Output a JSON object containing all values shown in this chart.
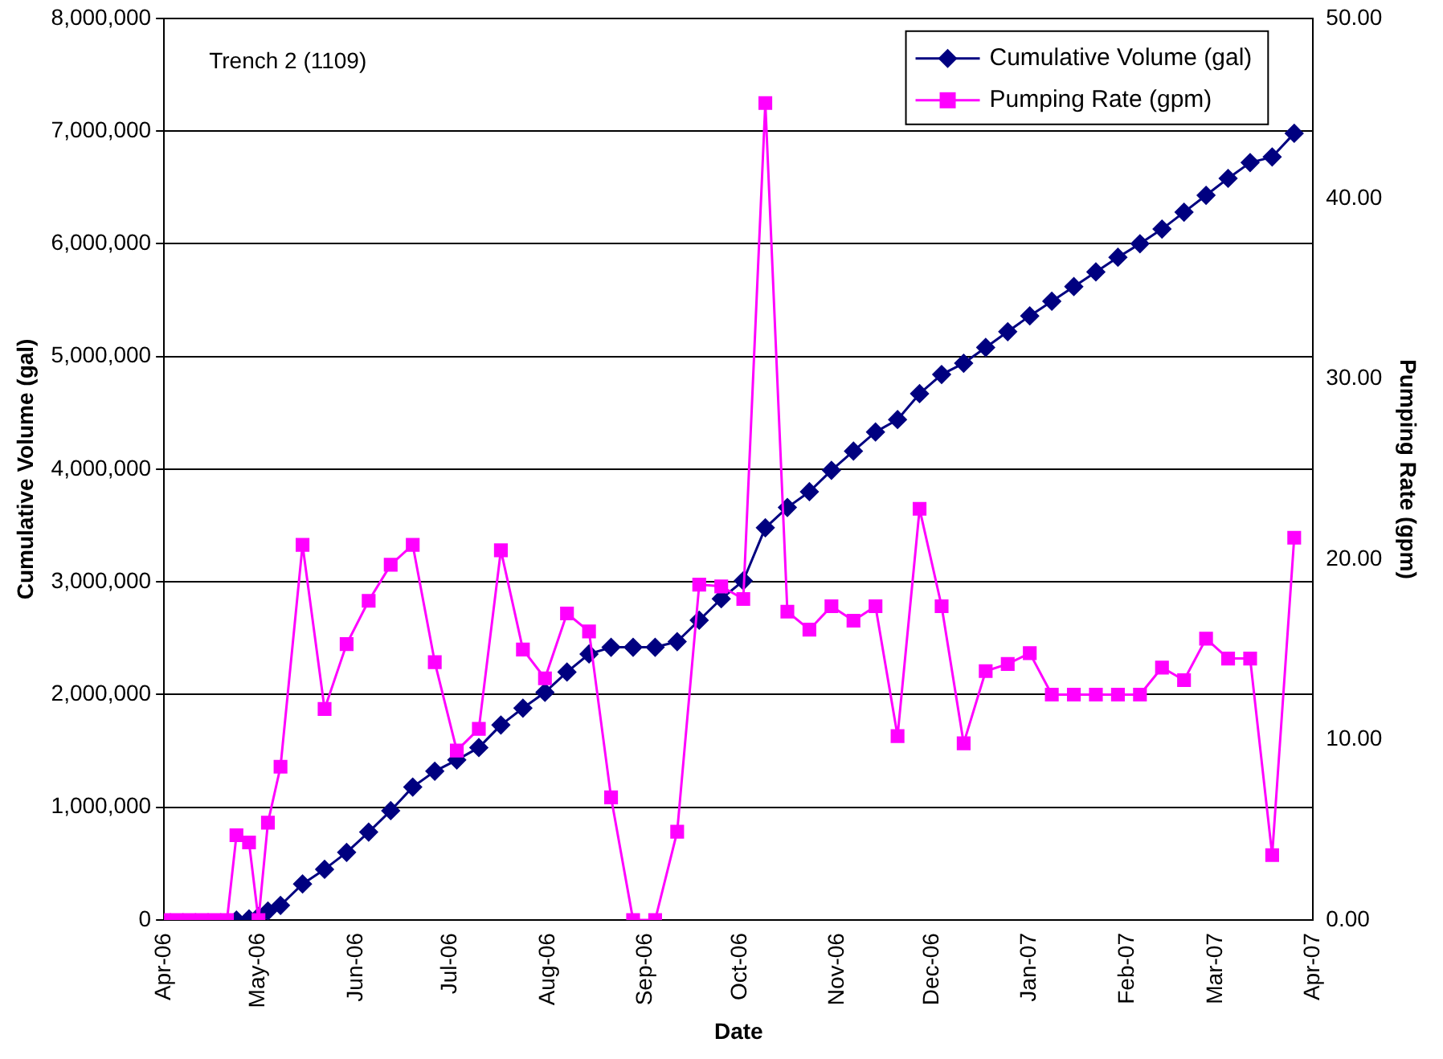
{
  "chart_data": {
    "type": "line",
    "xlabel": "Date",
    "ylabel": "Cumulative Volume (gal)",
    "y2label": "Pumping Rate (gpm)",
    "annotations": [
      "Trench 2 (1109)"
    ],
    "x": [
      "2006-04-01",
      "2006-04-05",
      "2006-04-09",
      "2006-04-13",
      "2006-04-17",
      "2006-04-21",
      "2006-04-24",
      "2006-04-28",
      "2006-05-01",
      "2006-05-04",
      "2006-05-08",
      "2006-05-15",
      "2006-05-22",
      "2006-05-29",
      "2006-06-05",
      "2006-06-12",
      "2006-06-19",
      "2006-06-26",
      "2006-07-03",
      "2006-07-10",
      "2006-07-17",
      "2006-07-24",
      "2006-07-31",
      "2006-08-07",
      "2006-08-14",
      "2006-08-21",
      "2006-08-28",
      "2006-09-04",
      "2006-09-11",
      "2006-09-18",
      "2006-09-25",
      "2006-10-02",
      "2006-10-09",
      "2006-10-16",
      "2006-10-23",
      "2006-10-30",
      "2006-11-06",
      "2006-11-13",
      "2006-11-20",
      "2006-11-27",
      "2006-12-04",
      "2006-12-11",
      "2006-12-18",
      "2006-12-25",
      "2007-01-01",
      "2007-01-08",
      "2007-01-15",
      "2007-01-22",
      "2007-01-29",
      "2007-02-05",
      "2007-02-12",
      "2007-02-19",
      "2007-02-26",
      "2007-03-05",
      "2007-03-12",
      "2007-03-19",
      "2007-03-26"
    ],
    "series": [
      {
        "name": "Cumulative Volume (gal)",
        "color": "#000080",
        "marker": "diamond",
        "values": [
          null,
          null,
          null,
          null,
          null,
          null,
          0,
          10000,
          30000,
          80000,
          130000,
          320000,
          450000,
          600000,
          780000,
          970000,
          1180000,
          1320000,
          1420000,
          1530000,
          1730000,
          1880000,
          2020000,
          2200000,
          2360000,
          2420000,
          2420000,
          2420000,
          2470000,
          2660000,
          2850000,
          3010000,
          3480000,
          3660000,
          3800000,
          3990000,
          4160000,
          4330000,
          4440000,
          4670000,
          4840000,
          4940000,
          5080000,
          5220000,
          5360000,
          5490000,
          5620000,
          5750000,
          5880000,
          6000000,
          6130000,
          6280000,
          6430000,
          6580000,
          6720000,
          6770000,
          6980000
        ]
      },
      {
        "name": "Pumping Rate (gpm)",
        "color": "#ff00ff",
        "marker": "square",
        "axis": "y2",
        "values": [
          0,
          0,
          0,
          0,
          0,
          0,
          4.7,
          4.3,
          0,
          5.4,
          8.5,
          20.8,
          11.7,
          15.3,
          17.7,
          19.7,
          20.8,
          14.3,
          9.4,
          10.6,
          20.5,
          15.0,
          13.4,
          17.0,
          16.0,
          6.8,
          0,
          0,
          4.9,
          18.6,
          18.5,
          17.8,
          45.3,
          17.1,
          16.1,
          17.4,
          16.6,
          17.4,
          10.2,
          22.8,
          17.4,
          9.8,
          13.8,
          14.2,
          14.8,
          12.5,
          12.5,
          12.5,
          12.5,
          12.5,
          14.0,
          13.3,
          15.6,
          14.5,
          14.5,
          3.6,
          21.2
        ]
      }
    ],
    "xlim": [
      "2006-04-01",
      "2007-04-01"
    ],
    "xticks": [
      {
        "value": "2006-04-01",
        "label": "Apr-06"
      },
      {
        "value": "2006-05-01",
        "label": "May-06"
      },
      {
        "value": "2006-06-01",
        "label": "Jun-06"
      },
      {
        "value": "2006-07-01",
        "label": "Jul-06"
      },
      {
        "value": "2006-08-01",
        "label": "Aug-06"
      },
      {
        "value": "2006-09-01",
        "label": "Sep-06"
      },
      {
        "value": "2006-10-01",
        "label": "Oct-06"
      },
      {
        "value": "2006-11-01",
        "label": "Nov-06"
      },
      {
        "value": "2006-12-01",
        "label": "Dec-06"
      },
      {
        "value": "2007-01-01",
        "label": "Jan-07"
      },
      {
        "value": "2007-02-01",
        "label": "Feb-07"
      },
      {
        "value": "2007-03-01",
        "label": "Mar-07"
      },
      {
        "value": "2007-04-01",
        "label": "Apr-07"
      }
    ],
    "ylim": [
      0,
      8000000
    ],
    "yticks": [
      {
        "value": 0,
        "label": "0"
      },
      {
        "value": 1000000,
        "label": "1,000,000"
      },
      {
        "value": 2000000,
        "label": "2,000,000"
      },
      {
        "value": 3000000,
        "label": "3,000,000"
      },
      {
        "value": 4000000,
        "label": "4,000,000"
      },
      {
        "value": 5000000,
        "label": "5,000,000"
      },
      {
        "value": 6000000,
        "label": "6,000,000"
      },
      {
        "value": 7000000,
        "label": "7,000,000"
      },
      {
        "value": 8000000,
        "label": "8,000,000"
      }
    ],
    "y2lim": [
      0,
      50
    ],
    "y2ticks": [
      {
        "value": 0,
        "label": "0.00"
      },
      {
        "value": 10,
        "label": "10.00"
      },
      {
        "value": 20,
        "label": "20.00"
      },
      {
        "value": 30,
        "label": "30.00"
      },
      {
        "value": 40,
        "label": "40.00"
      },
      {
        "value": 50,
        "label": "50.00"
      }
    ],
    "grid": "y",
    "legend": "top right",
    "line_style": "solid"
  }
}
